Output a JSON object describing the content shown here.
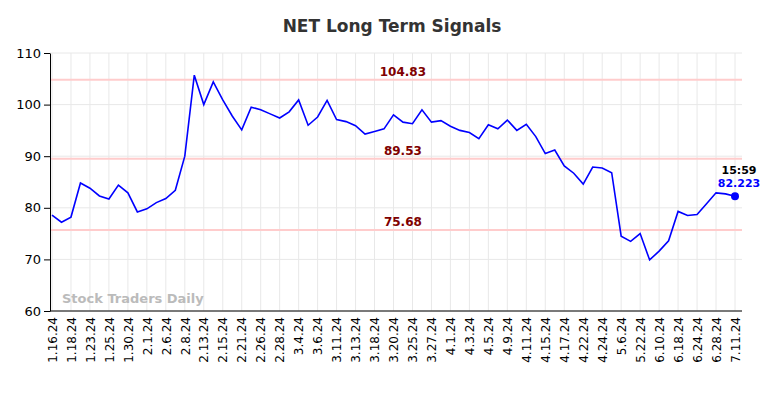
{
  "chart_data": {
    "type": "line",
    "title": "NET Long Term Signals",
    "categories": [
      "1.16.24",
      null,
      "1.18.24",
      null,
      "1.23.24",
      null,
      "1.25.24",
      null,
      "1.30.24",
      null,
      "2.1.24",
      null,
      "2.6.24",
      null,
      "2.8.24",
      null,
      "2.13.24",
      null,
      "2.15.24",
      null,
      "2.21.24",
      null,
      "2.26.24",
      null,
      "2.28.24",
      null,
      "3.4.24",
      null,
      "3.6.24",
      null,
      "3.11.24",
      null,
      "3.13.24",
      null,
      "3.18.24",
      null,
      "3.20.24",
      null,
      "3.25.24",
      null,
      "3.27.24",
      null,
      "4.1.24",
      null,
      "4.3.24",
      null,
      "4.5.24",
      null,
      "4.9.24",
      null,
      "4.11.24",
      null,
      "4.15.24",
      null,
      "4.17.24",
      null,
      "4.22.24",
      null,
      "4.24.24",
      null,
      "5.6.24",
      null,
      "5.22.24",
      null,
      "6.10.24",
      null,
      "6.18.24",
      null,
      "6.24.24",
      null,
      "6.28.24",
      null,
      "7.11.24"
    ],
    "values": [
      78.6,
      77.2,
      78.2,
      84.8,
      83.8,
      82.3,
      81.7,
      84.4,
      82.9,
      79.2,
      79.8,
      81.0,
      81.8,
      83.4,
      90.0,
      105.7,
      100.0,
      104.4,
      100.9,
      97.8,
      95.1,
      99.5,
      99.0,
      98.2,
      97.4,
      98.6,
      100.9,
      96.0,
      97.6,
      100.8,
      97.1,
      96.7,
      95.9,
      94.3,
      94.8,
      95.3,
      98.0,
      96.6,
      96.3,
      99.0,
      96.6,
      96.9,
      95.8,
      95.0,
      94.6,
      93.4,
      96.1,
      95.3,
      97.0,
      95.0,
      96.2,
      93.8,
      90.5,
      91.2,
      88.1,
      86.7,
      84.6,
      87.9,
      87.7,
      86.8,
      74.5,
      73.5,
      75.0,
      69.9,
      71.6,
      73.6,
      79.3,
      78.5,
      78.7,
      80.8,
      82.9,
      82.7,
      82.223
    ],
    "color": "#0000ff",
    "ylim": [
      60,
      110
    ],
    "yticks": [
      60,
      70,
      80,
      90,
      100,
      110
    ],
    "grid": true,
    "reference_lines": [
      104.83,
      89.53,
      75.68
    ],
    "last_time": "15:59",
    "watermark": "Stock Traders Daily"
  }
}
